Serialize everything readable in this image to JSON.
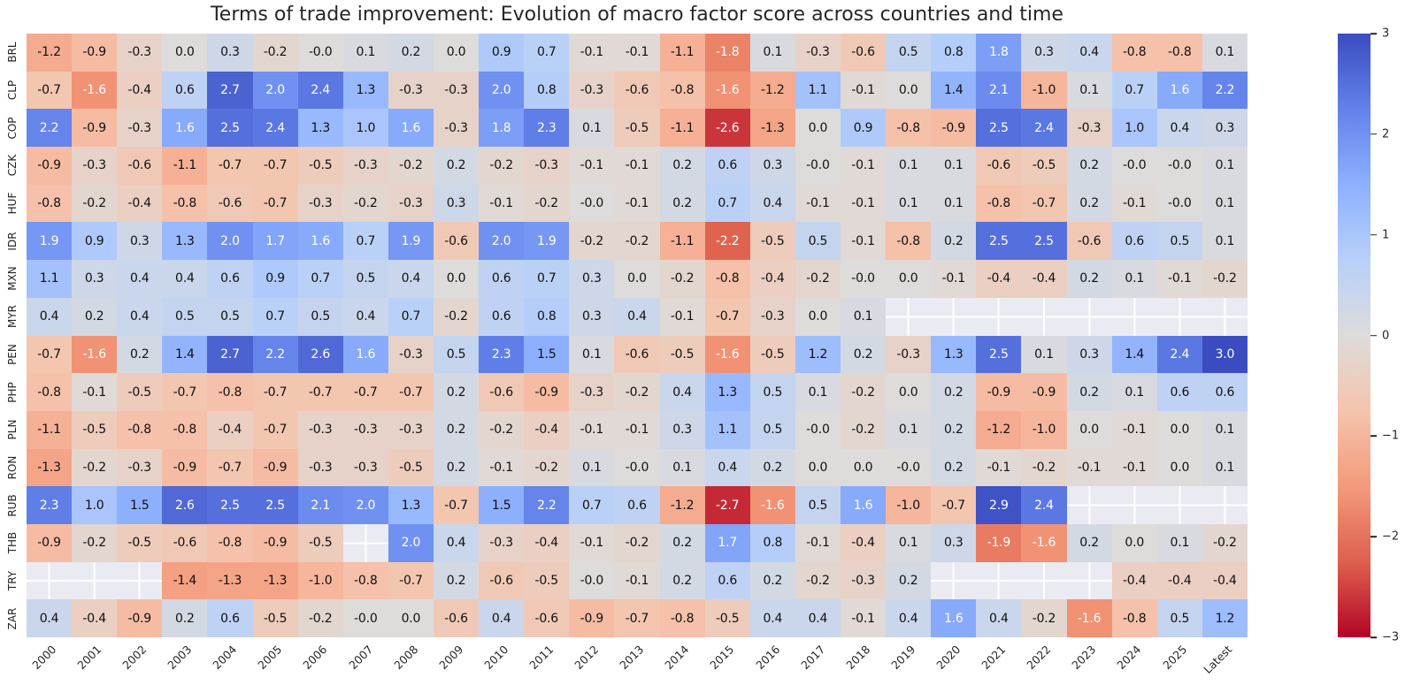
{
  "chart_data": {
    "type": "heatmap",
    "title": "Terms of trade improvement: Evolution of macro factor score across countries and time",
    "columns": [
      "2000",
      "2001",
      "2002",
      "2003",
      "2004",
      "2005",
      "2006",
      "2007",
      "2008",
      "2009",
      "2010",
      "2011",
      "2012",
      "2013",
      "2014",
      "2015",
      "2016",
      "2017",
      "2018",
      "2019",
      "2020",
      "2021",
      "2022",
      "2023",
      "2024",
      "2025",
      "Latest"
    ],
    "rows": [
      "BRL",
      "CLP",
      "COP",
      "CZK",
      "HUF",
      "IDR",
      "MXN",
      "MYR",
      "PEN",
      "PHP",
      "PLN",
      "RON",
      "RUB",
      "THB",
      "TRY",
      "ZAR"
    ],
    "values": [
      [
        "-1.2",
        "-0.9",
        "-0.3",
        "0.0",
        "0.3",
        "-0.2",
        "-0.0",
        "0.1",
        "0.2",
        "0.0",
        "0.9",
        "0.7",
        "-0.1",
        "-0.1",
        "-1.1",
        "-1.8",
        "0.1",
        "-0.3",
        "-0.6",
        "0.5",
        "0.8",
        "1.8",
        "0.3",
        "0.4",
        "-0.8",
        "-0.8",
        "0.1"
      ],
      [
        "-0.7",
        "-1.6",
        "-0.4",
        "0.6",
        "2.7",
        "2.0",
        "2.4",
        "1.3",
        "-0.3",
        "-0.3",
        "2.0",
        "0.8",
        "-0.3",
        "-0.6",
        "-0.8",
        "-1.6",
        "-1.2",
        "1.1",
        "-0.1",
        "0.0",
        "1.4",
        "2.1",
        "-1.0",
        "0.1",
        "0.7",
        "1.6",
        "2.2"
      ],
      [
        "2.2",
        "-0.9",
        "-0.3",
        "1.6",
        "2.5",
        "2.4",
        "1.3",
        "1.0",
        "1.6",
        "-0.3",
        "1.8",
        "2.3",
        "0.1",
        "-0.5",
        "-1.1",
        "-2.6",
        "-1.3",
        "0.0",
        "0.9",
        "-0.8",
        "-0.9",
        "2.5",
        "2.4",
        "-0.3",
        "1.0",
        "0.4",
        "0.3"
      ],
      [
        "-0.9",
        "-0.3",
        "-0.6",
        "-1.1",
        "-0.7",
        "-0.7",
        "-0.5",
        "-0.3",
        "-0.2",
        "0.2",
        "-0.2",
        "-0.3",
        "-0.1",
        "-0.1",
        "0.2",
        "0.6",
        "0.3",
        "-0.0",
        "-0.1",
        "0.1",
        "0.1",
        "-0.6",
        "-0.5",
        "0.2",
        "-0.0",
        "-0.0",
        "0.1"
      ],
      [
        "-0.8",
        "-0.2",
        "-0.4",
        "-0.8",
        "-0.6",
        "-0.7",
        "-0.3",
        "-0.2",
        "-0.3",
        "0.3",
        "-0.1",
        "-0.2",
        "-0.0",
        "-0.1",
        "0.2",
        "0.7",
        "0.4",
        "-0.1",
        "-0.1",
        "0.1",
        "0.1",
        "-0.8",
        "-0.7",
        "0.2",
        "-0.1",
        "-0.0",
        "0.1"
      ],
      [
        "1.9",
        "0.9",
        "0.3",
        "1.3",
        "2.0",
        "1.7",
        "1.6",
        "0.7",
        "1.9",
        "-0.6",
        "2.0",
        "1.9",
        "-0.2",
        "-0.2",
        "-1.1",
        "-2.2",
        "-0.5",
        "0.5",
        "-0.1",
        "-0.8",
        "0.2",
        "2.5",
        "2.5",
        "-0.6",
        "0.6",
        "0.5",
        "0.1"
      ],
      [
        "1.1",
        "0.3",
        "0.4",
        "0.4",
        "0.6",
        "0.9",
        "0.7",
        "0.5",
        "0.4",
        "0.0",
        "0.6",
        "0.7",
        "0.3",
        "0.0",
        "-0.2",
        "-0.8",
        "-0.4",
        "-0.2",
        "-0.0",
        "0.0",
        "-0.1",
        "-0.4",
        "-0.4",
        "0.2",
        "0.1",
        "-0.1",
        "-0.2"
      ],
      [
        "0.4",
        "0.2",
        "0.4",
        "0.5",
        "0.5",
        "0.7",
        "0.5",
        "0.4",
        "0.7",
        "-0.2",
        "0.6",
        "0.8",
        "0.3",
        "0.4",
        "-0.1",
        "-0.7",
        "-0.3",
        "0.0",
        "0.1",
        "",
        "",
        "",
        "",
        "",
        "",
        "",
        ""
      ],
      [
        "-0.7",
        "-1.6",
        "0.2",
        "1.4",
        "2.7",
        "2.2",
        "2.6",
        "1.6",
        "-0.3",
        "0.5",
        "2.3",
        "1.5",
        "0.1",
        "-0.6",
        "-0.5",
        "-1.6",
        "-0.5",
        "1.2",
        "0.2",
        "-0.3",
        "1.3",
        "2.5",
        "0.1",
        "0.3",
        "1.4",
        "2.4",
        "3.0"
      ],
      [
        "-0.8",
        "-0.1",
        "-0.5",
        "-0.7",
        "-0.8",
        "-0.7",
        "-0.7",
        "-0.7",
        "-0.7",
        "0.2",
        "-0.6",
        "-0.9",
        "-0.3",
        "-0.2",
        "0.4",
        "1.3",
        "0.5",
        "0.1",
        "-0.2",
        "0.0",
        "0.2",
        "-0.9",
        "-0.9",
        "0.2",
        "0.1",
        "0.6",
        "0.6"
      ],
      [
        "-1.1",
        "-0.5",
        "-0.8",
        "-0.8",
        "-0.4",
        "-0.7",
        "-0.3",
        "-0.3",
        "-0.3",
        "0.2",
        "-0.2",
        "-0.4",
        "-0.1",
        "-0.1",
        "0.3",
        "1.1",
        "0.5",
        "-0.0",
        "-0.2",
        "0.1",
        "0.2",
        "-1.2",
        "-1.0",
        "0.0",
        "-0.1",
        "0.0",
        "0.1"
      ],
      [
        "-1.3",
        "-0.2",
        "-0.3",
        "-0.9",
        "-0.7",
        "-0.9",
        "-0.3",
        "-0.3",
        "-0.5",
        "0.2",
        "-0.1",
        "-0.2",
        "0.1",
        "-0.0",
        "0.1",
        "0.4",
        "0.2",
        "0.0",
        "0.0",
        "-0.0",
        "0.2",
        "-0.1",
        "-0.2",
        "-0.1",
        "-0.1",
        "0.0",
        "0.1"
      ],
      [
        "2.3",
        "1.0",
        "1.5",
        "2.6",
        "2.5",
        "2.5",
        "2.1",
        "2.0",
        "1.3",
        "-0.7",
        "1.5",
        "2.2",
        "0.7",
        "0.6",
        "-1.2",
        "-2.7",
        "-1.6",
        "0.5",
        "1.6",
        "-1.0",
        "-0.7",
        "2.9",
        "2.4",
        "",
        "",
        "",
        ""
      ],
      [
        "-0.9",
        "-0.2",
        "-0.5",
        "-0.6",
        "-0.8",
        "-0.9",
        "-0.5",
        "",
        "2.0",
        "0.4",
        "-0.3",
        "-0.4",
        "-0.1",
        "-0.2",
        "0.2",
        "1.7",
        "0.8",
        "-0.1",
        "-0.4",
        "0.1",
        "0.3",
        "-1.9",
        "-1.6",
        "0.2",
        "0.0",
        "0.1",
        "-0.2"
      ],
      [
        "",
        "",
        "",
        "-1.4",
        "-1.3",
        "-1.3",
        "-1.0",
        "-0.8",
        "-0.7",
        "0.2",
        "-0.6",
        "-0.5",
        "-0.0",
        "-0.1",
        "0.2",
        "0.6",
        "0.2",
        "-0.2",
        "-0.3",
        "0.2",
        "",
        "",
        "",
        "",
        "-0.4",
        "-0.4",
        "-0.4"
      ],
      [
        "0.4",
        "-0.4",
        "-0.9",
        "0.2",
        "0.6",
        "-0.5",
        "-0.2",
        "-0.0",
        "0.0",
        "-0.6",
        "0.4",
        "-0.6",
        "-0.9",
        "-0.7",
        "-0.8",
        "-0.5",
        "0.4",
        "0.4",
        "-0.1",
        "0.4",
        "1.6",
        "0.4",
        "-0.2",
        "-1.6",
        "-0.8",
        "0.5",
        "1.2"
      ]
    ],
    "vmin": -3,
    "vmax": 3,
    "colormap": "coolwarm-reversed (blue = +3, gray = 0, red = -3)",
    "colorbar_ticks": [
      "3",
      "2",
      "1",
      "0",
      "−1",
      "−2",
      "−3"
    ],
    "nan_color": "#eaeaf2",
    "colors": {
      "max_blue": "#3b4cc0",
      "mid_gray": "#dddcdb",
      "min_red": "#b40426"
    },
    "legend_position": "right",
    "grid": false
  }
}
